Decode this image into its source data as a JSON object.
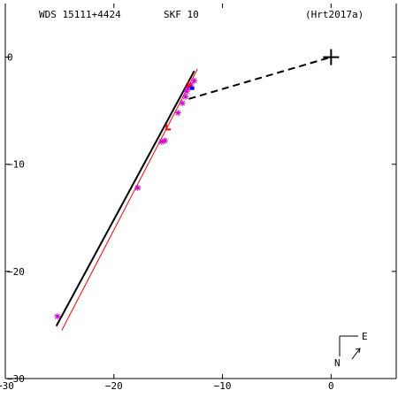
{
  "header": {
    "wds": "WDS 15111+4424",
    "discoverer": "SKF  10",
    "reference": "(Hrt2017a)"
  },
  "compass": {
    "east": "E",
    "north": "N"
  },
  "colors": {
    "axis": "#000000",
    "orbit": "#000000",
    "fit_line": "#ff0000",
    "observation": "#cc00cc",
    "residual": "#ff0000",
    "recent_point": "#0000ff"
  },
  "chart_data": {
    "type": "scatter",
    "title": "",
    "xlabel": "",
    "ylabel": "",
    "xlim": [
      -30,
      6
    ],
    "ylim": [
      -30,
      5
    ],
    "x_ticks": [
      -30,
      -20,
      -10,
      0
    ],
    "y_ticks": [
      0,
      -10,
      -20,
      -30
    ],
    "x_tick_labels": [
      "−30",
      "−20",
      "−10",
      "0"
    ],
    "y_tick_labels": [
      "0",
      "−10",
      "−20",
      "−30"
    ],
    "primary": {
      "x": 0,
      "y": 0,
      "marker": "plus"
    },
    "orbit_segment": {
      "x": [
        -25.3,
        -12.6
      ],
      "y": [
        -25.1,
        -1.3
      ]
    },
    "fit_line": {
      "x": [
        -24.8,
        -12.3
      ],
      "y": [
        -25.5,
        -1.1
      ]
    },
    "node_line": {
      "x": [
        -13.1,
        0
      ],
      "y": [
        -3.9,
        0
      ],
      "style": "dashed"
    },
    "observations": [
      {
        "x": -25.2,
        "y": -24.2
      },
      {
        "x": -17.8,
        "y": -12.2
      },
      {
        "x": -15.6,
        "y": -7.9
      },
      {
        "x": -15.3,
        "y": -7.8
      },
      {
        "x": -14.1,
        "y": -5.2
      },
      {
        "x": -13.7,
        "y": -4.3
      },
      {
        "x": -13.4,
        "y": -3.7
      },
      {
        "x": -13.2,
        "y": -2.9
      },
      {
        "x": -12.9,
        "y": -2.6
      },
      {
        "x": -12.6,
        "y": -2.2
      },
      {
        "x": -13.3,
        "y": -3.2
      }
    ],
    "residual_marks": [
      {
        "x": -15.0,
        "y": -6.5
      },
      {
        "x": -13.0,
        "y": -2.5
      }
    ],
    "recent_point": {
      "x": -12.8,
      "y": -2.9
    }
  }
}
